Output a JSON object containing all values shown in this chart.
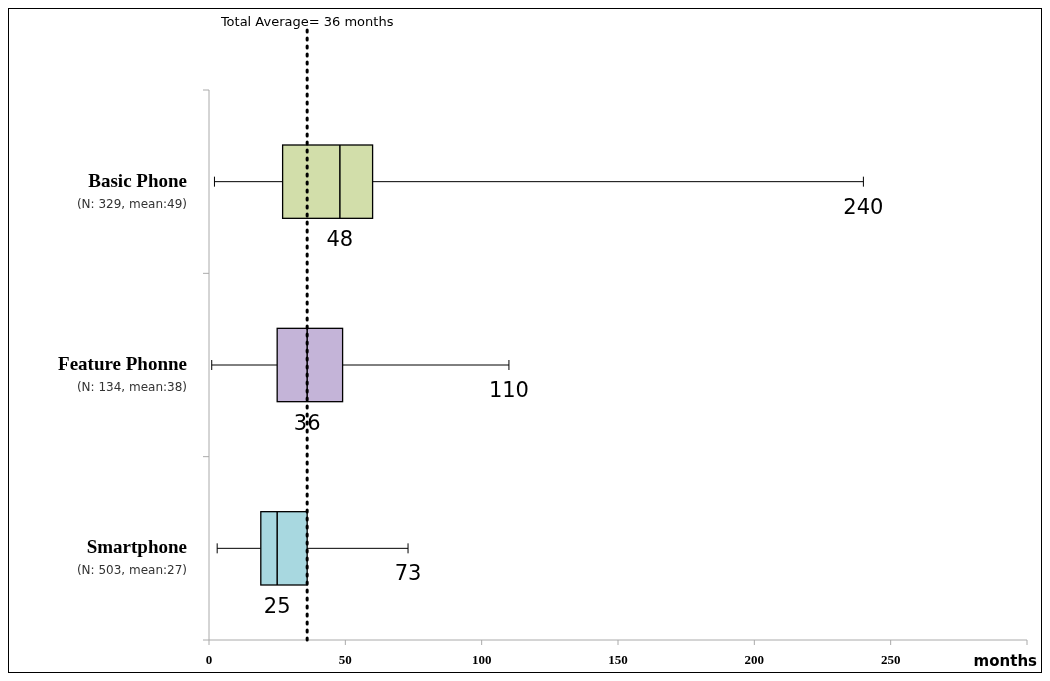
{
  "chart_data": {
    "type": "box",
    "orientation": "horizontal",
    "categories": [
      "Basic Phone\n(N: 329, mean:49)",
      "Feature Phonne\n(N: 134, mean:38)",
      "Smartphone\n(N: 503, mean:27)"
    ],
    "boxes": [
      {
        "low": 2,
        "q1": 27,
        "median": 48,
        "q3": 60,
        "high": 240
      },
      {
        "low": 1,
        "q1": 25,
        "median": 36,
        "q3": 49,
        "high": 110
      },
      {
        "low": 3,
        "q1": 19,
        "median": 25,
        "q3": 36,
        "high": 73
      }
    ],
    "colors": [
      "#d2deaa",
      "#c4b4d8",
      "#a8d8e0"
    ],
    "xlabel": "months",
    "xlim": [
      0,
      300
    ],
    "xticks": [
      0,
      50,
      100,
      150,
      200,
      250,
      {
        "value": 300,
        "label": null
      }
    ],
    "ref_lines": [
      {
        "axis": "x",
        "value": 36,
        "label": "Total Average= 36 months",
        "line_style": "dotted",
        "color": "#000000"
      }
    ],
    "annotations": [
      {
        "text": "48",
        "x": 48,
        "y": "Basic Phone\n(N: 329, mean:49)"
      },
      {
        "text": "240",
        "x": 240,
        "y": "Basic Phone\n(N: 329, mean:49)"
      },
      {
        "text": "36",
        "x": 36,
        "y": "Feature Phonne\n(N: 134, mean:38)"
      },
      {
        "text": "110",
        "x": 110,
        "y": "Feature Phonne\n(N: 134, mean:38)"
      },
      {
        "text": "25",
        "x": 25,
        "y": "Smartphone\n(N: 503, mean:27)"
      },
      {
        "text": "73",
        "x": 73,
        "y": "Smartphone\n(N: 503, mean:27)"
      }
    ]
  }
}
